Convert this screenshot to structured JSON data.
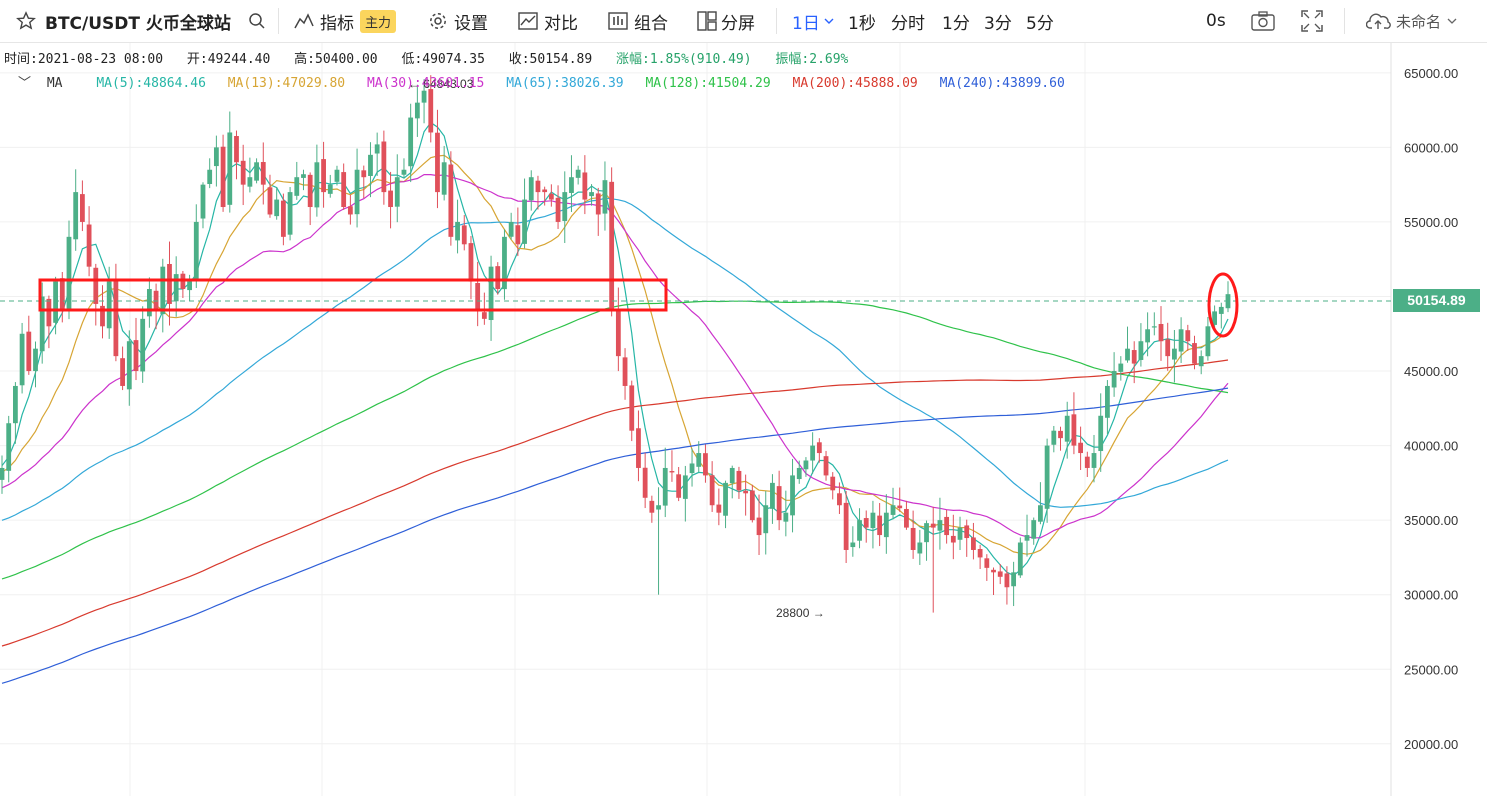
{
  "toolbar": {
    "symbol": "BTC/USDT 火币全球站",
    "indicators": "指标",
    "indicators_badge": "主力",
    "settings": "设置",
    "compare": "对比",
    "combo": "组合",
    "split": "分屏",
    "interval_selected": "1日",
    "intervals": [
      "1秒",
      "分时",
      "1分",
      "3分",
      "5分"
    ],
    "timer": "0s",
    "layout_name": "未命名"
  },
  "ohlc": {
    "time": "时间:2021-08-23 08:00",
    "open": "开:49244.40",
    "high": "高:50400.00",
    "low": "低:49074.35",
    "close": "收:50154.89",
    "change": "涨幅:1.85%(910.49)",
    "amplitude": "振幅:2.69%"
  },
  "ma_legend": {
    "toggle": "﹀",
    "label": "MA",
    "ma5": "MA(5):48864.46",
    "ma13": "MA(13):47029.80",
    "ma30": "MA(30):43601.15",
    "ma65": "MA(65):38026.39",
    "ma128": "MA(128):41504.29",
    "ma200": "MA(200):45888.09",
    "ma240": "MA(240):43899.60"
  },
  "colors": {
    "up": "#4caf87",
    "down": "#e0505a",
    "ma5": "#26b6a6",
    "ma13": "#d7a534",
    "ma30": "#cc33cc",
    "ma65": "#33a8d8",
    "ma128": "#2fc24a",
    "ma200": "#d83a2e",
    "ma240": "#2f5fd8",
    "annotation": "#ff1a1a"
  },
  "price_axis": [
    "65000.00",
    "60000.00",
    "55000.00",
    "50000.00",
    "45000.00",
    "40000.00",
    "35000.00",
    "30000.00",
    "25000.00",
    "20000.00"
  ],
  "last_price_tag": "50154.89",
  "high_marker": "← 64843.03",
  "low_marker": "28800 →",
  "chart_data": {
    "type": "candlestick",
    "symbol": "BTC/USDT",
    "interval": "1日",
    "y_range": [
      16500,
      67000
    ],
    "last_close": 50154.89,
    "high_point": 64843.03,
    "low_point": 28800,
    "closes": [
      38500,
      41500,
      44000,
      47500,
      45000,
      46500,
      50000,
      48000,
      51000,
      49000,
      54000,
      57000,
      55000,
      52000,
      49500,
      48000,
      51000,
      46000,
      44000,
      47000,
      45000,
      48500,
      50500,
      49000,
      52000,
      49500,
      51500,
      50500,
      51000,
      55000,
      57500,
      58500,
      60000,
      56000,
      61000,
      59000,
      57500,
      58000,
      59000,
      57500,
      55500,
      56500,
      54000,
      57000,
      58000,
      58200,
      56000,
      59000,
      57000,
      57500,
      58500,
      56000,
      55500,
      58500,
      58000,
      59500,
      60200,
      57000,
      56000,
      58000,
      58500,
      62000,
      63000,
      63800,
      61000,
      57000,
      59000,
      54000,
      55000,
      53500,
      51000,
      49000,
      48500,
      52000,
      50500,
      54000,
      55000,
      53500,
      56500,
      58000,
      57000,
      57000,
      56500,
      55000,
      57000,
      58000,
      58500,
      56500,
      57000,
      55500,
      57800,
      49000,
      46000,
      44000,
      41000,
      38500,
      36500,
      35500,
      36000,
      38500,
      38200,
      36500,
      38000,
      38800,
      39500,
      38000,
      36000,
      35500,
      37500,
      38500,
      37000,
      36800,
      35000,
      34000,
      36000,
      37500,
      35000,
      35500,
      38000,
      38500,
      39000,
      40000,
      39500,
      38000,
      37000,
      36000,
      33000,
      33500,
      35000,
      34500,
      35500,
      34000,
      35500,
      36000,
      35800,
      34500,
      33000,
      33500,
      34800,
      34500,
      35000,
      34000,
      33500,
      34500,
      33800,
      33000,
      32500,
      31800,
      31500,
      31200,
      30500,
      31500,
      33500,
      34000,
      35000,
      36000,
      40000,
      41000,
      40500,
      42000,
      40000,
      39500,
      38500,
      39500,
      42000,
      44000,
      45000,
      45500,
      46500,
      45500,
      47000,
      47800,
      48000,
      47000,
      46000,
      46500,
      47800,
      47000,
      45500,
      46000,
      48000,
      49000,
      49300,
      50154.89
    ]
  }
}
